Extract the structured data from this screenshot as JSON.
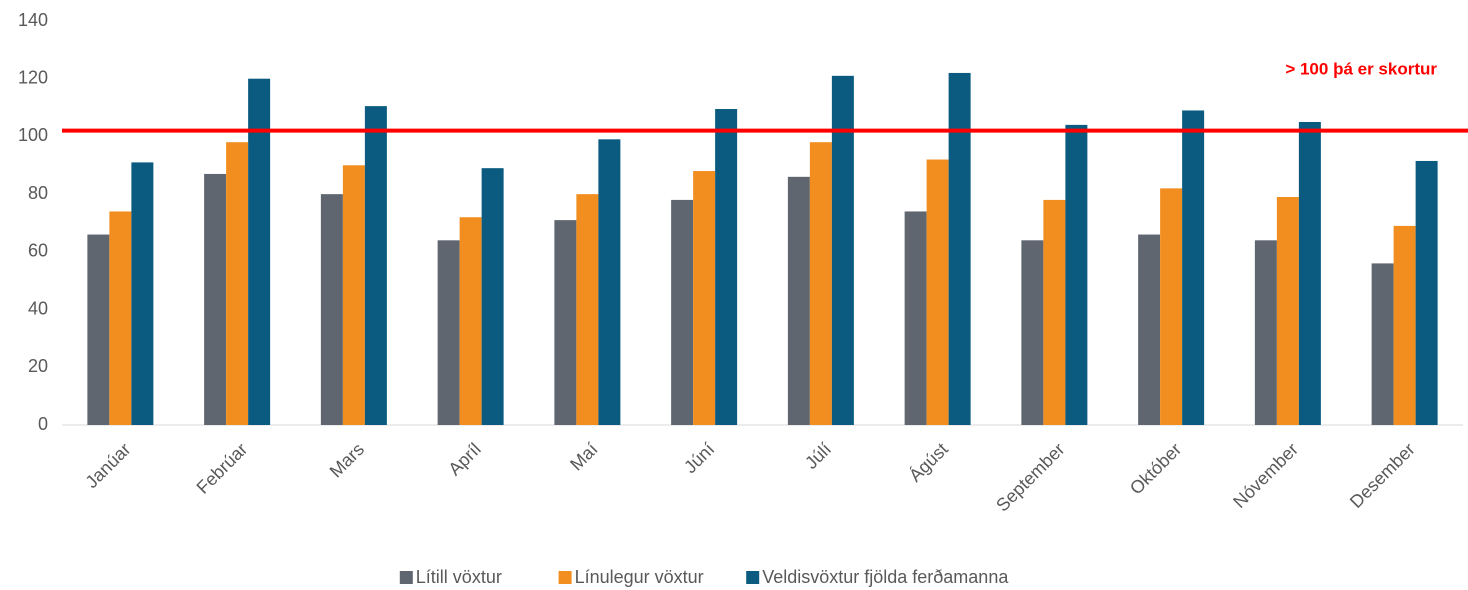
{
  "chart_data": {
    "type": "bar",
    "categories": [
      "Janúar",
      "Febrúar",
      "Mars",
      "Apríl",
      "Maí",
      "Júní",
      "Júlí",
      "Ágúst",
      "September",
      "Október",
      "Nóvember",
      "Desember"
    ],
    "series": [
      {
        "name": "Lítill vöxtur",
        "color": "#5f6670",
        "values": [
          66,
          87,
          80,
          64,
          71,
          78,
          86,
          74,
          64,
          66,
          64,
          56
        ]
      },
      {
        "name": "Línulegur vöxtur",
        "color": "#f28e1f",
        "values": [
          74,
          98,
          90,
          72,
          80,
          88,
          98,
          92,
          78,
          82,
          79,
          69
        ]
      },
      {
        "name": "Veldisvöxtur fjölda ferðamanna",
        "color": "#0b5b80",
        "values": [
          91,
          120,
          110.5,
          89,
          99,
          109.5,
          121,
          122,
          104,
          109,
          105,
          91.5
        ]
      }
    ],
    "ylim": [
      0,
      140
    ],
    "yticks": [
      0,
      20,
      40,
      60,
      80,
      100,
      120,
      140
    ],
    "reference_line": {
      "value": 102,
      "color": "#ff0000"
    },
    "annotation": "> 100 þá er skortur",
    "legend": "bottom"
  }
}
